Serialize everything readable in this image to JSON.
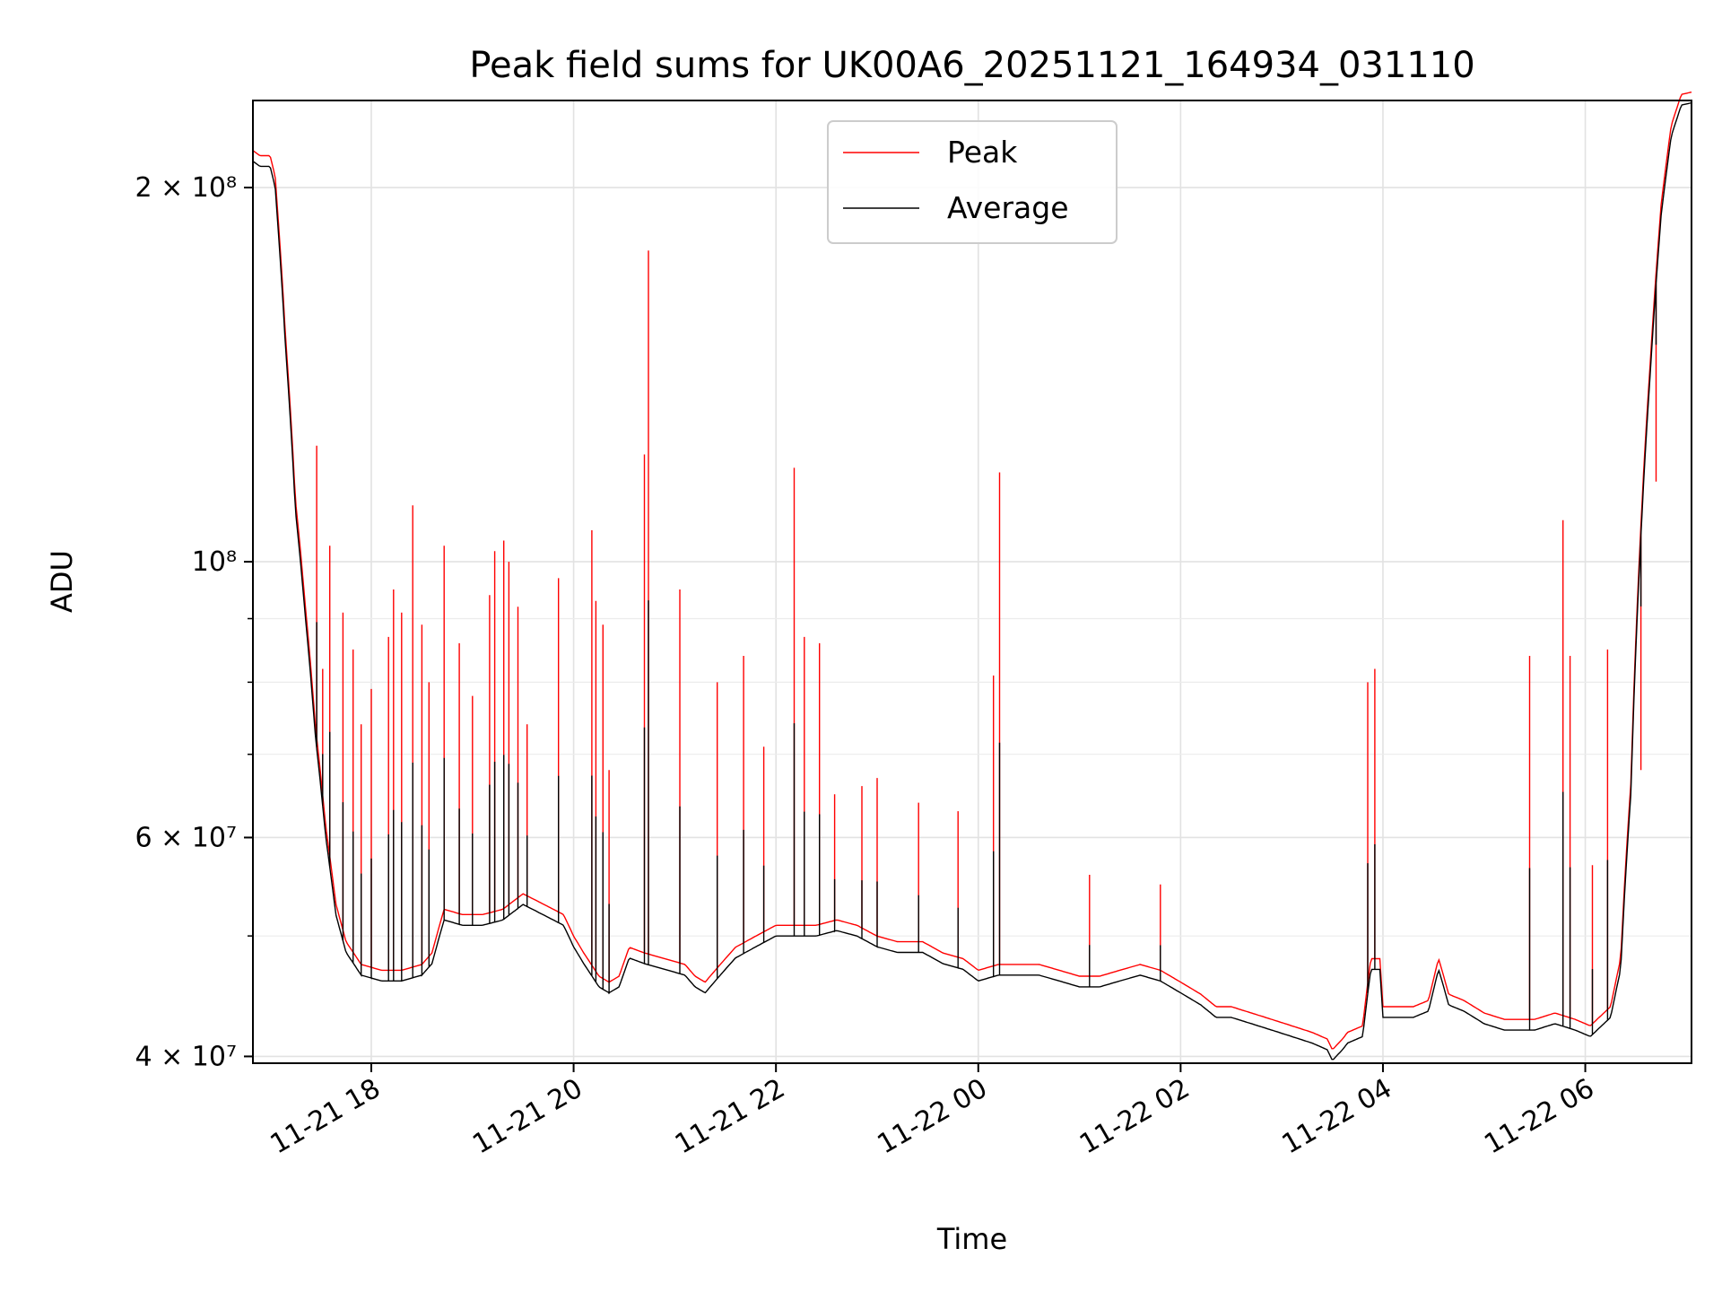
{
  "chart_data": {
    "type": "line",
    "title": "Peak field sums for UK00A6_20251121_164934_031110",
    "xlabel": "Time",
    "ylabel": "ADU",
    "yscale": "log",
    "grid": true,
    "legend_position": "top-center",
    "x_unit": "hours since 2025-11-21 00:00",
    "xlim": [
      16.83,
      31.05
    ],
    "ylim": [
      39500000,
      235000000
    ],
    "x_ticks": [
      {
        "value": 18,
        "label": "11-21 18"
      },
      {
        "value": 20,
        "label": "11-21 20"
      },
      {
        "value": 22,
        "label": "11-21 22"
      },
      {
        "value": 24,
        "label": "11-22 00"
      },
      {
        "value": 26,
        "label": "11-22 02"
      },
      {
        "value": 28,
        "label": "11-22 04"
      },
      {
        "value": 30,
        "label": "11-22 06"
      }
    ],
    "y_ticks": [
      {
        "value": 40000000,
        "label": "4 × 10⁷"
      },
      {
        "value": 60000000,
        "label": "6 × 10⁷"
      },
      {
        "value": 100000000,
        "label": "10⁸"
      },
      {
        "value": 200000000,
        "label": "2 × 10⁸"
      }
    ],
    "y_minor_ticks": [
      50000000,
      70000000,
      80000000,
      90000000
    ],
    "series": [
      {
        "name": "Average",
        "color": "#000000",
        "points": [
          [
            16.83,
            210000000
          ],
          [
            16.9,
            208000000
          ],
          [
            17.0,
            208000000
          ],
          [
            17.05,
            200000000
          ],
          [
            17.15,
            150000000
          ],
          [
            17.25,
            110000000
          ],
          [
            17.35,
            90000000
          ],
          [
            17.45,
            72000000
          ],
          [
            17.55,
            60000000
          ],
          [
            17.65,
            52000000
          ],
          [
            17.75,
            48500000
          ],
          [
            17.9,
            46500000
          ],
          [
            18.1,
            46000000
          ],
          [
            18.3,
            46000000
          ],
          [
            18.5,
            46500000
          ],
          [
            18.6,
            47500000
          ],
          [
            18.72,
            51500000
          ],
          [
            18.9,
            51000000
          ],
          [
            19.1,
            51000000
          ],
          [
            19.3,
            51500000
          ],
          [
            19.5,
            53000000
          ],
          [
            19.7,
            52000000
          ],
          [
            19.9,
            51000000
          ],
          [
            20.0,
            49000000
          ],
          [
            20.1,
            47500000
          ],
          [
            20.25,
            45500000
          ],
          [
            20.35,
            45000000
          ],
          [
            20.45,
            45500000
          ],
          [
            20.55,
            48000000
          ],
          [
            20.7,
            47500000
          ],
          [
            20.9,
            47000000
          ],
          [
            21.1,
            46500000
          ],
          [
            21.2,
            45500000
          ],
          [
            21.3,
            45000000
          ],
          [
            21.45,
            46500000
          ],
          [
            21.6,
            48000000
          ],
          [
            21.8,
            49000000
          ],
          [
            22.0,
            50000000
          ],
          [
            22.2,
            50000000
          ],
          [
            22.4,
            50000000
          ],
          [
            22.6,
            50500000
          ],
          [
            22.8,
            50000000
          ],
          [
            23.0,
            49000000
          ],
          [
            23.2,
            48500000
          ],
          [
            23.45,
            48500000
          ],
          [
            23.65,
            47500000
          ],
          [
            23.85,
            47000000
          ],
          [
            24.0,
            46000000
          ],
          [
            24.2,
            46500000
          ],
          [
            24.4,
            46500000
          ],
          [
            24.6,
            46500000
          ],
          [
            24.8,
            46000000
          ],
          [
            25.0,
            45500000
          ],
          [
            25.2,
            45500000
          ],
          [
            25.4,
            46000000
          ],
          [
            25.6,
            46500000
          ],
          [
            25.8,
            46000000
          ],
          [
            26.0,
            45000000
          ],
          [
            26.2,
            44000000
          ],
          [
            26.35,
            43000000
          ],
          [
            26.5,
            43000000
          ],
          [
            26.7,
            42500000
          ],
          [
            26.9,
            42000000
          ],
          [
            27.1,
            41500000
          ],
          [
            27.3,
            41000000
          ],
          [
            27.45,
            40500000
          ],
          [
            27.5,
            39700000
          ],
          [
            27.6,
            40500000
          ],
          [
            27.65,
            41000000
          ],
          [
            27.8,
            41500000
          ],
          [
            27.88,
            47000000
          ],
          [
            27.97,
            47000000
          ],
          [
            28.0,
            43000000
          ],
          [
            28.2,
            43000000
          ],
          [
            28.3,
            43000000
          ],
          [
            28.45,
            43500000
          ],
          [
            28.55,
            47000000
          ],
          [
            28.65,
            44000000
          ],
          [
            28.8,
            43500000
          ],
          [
            29.0,
            42500000
          ],
          [
            29.2,
            42000000
          ],
          [
            29.5,
            42000000
          ],
          [
            29.7,
            42500000
          ],
          [
            29.9,
            42000000
          ],
          [
            30.05,
            41500000
          ],
          [
            30.25,
            43000000
          ],
          [
            30.35,
            47000000
          ],
          [
            30.45,
            65000000
          ],
          [
            30.55,
            105000000
          ],
          [
            30.65,
            145000000
          ],
          [
            30.75,
            190000000
          ],
          [
            30.85,
            220000000
          ],
          [
            30.95,
            233000000
          ],
          [
            31.05,
            234000000
          ]
        ]
      },
      {
        "name": "Peak",
        "color": "#ff0000",
        "spikes": [
          [
            17.46,
            124000000
          ],
          [
            17.52,
            82000000
          ],
          [
            17.59,
            103000000
          ],
          [
            17.72,
            91000000
          ],
          [
            17.82,
            85000000
          ],
          [
            17.9,
            74000000
          ],
          [
            18.0,
            79000000
          ],
          [
            18.17,
            87000000
          ],
          [
            18.22,
            95000000
          ],
          [
            18.3,
            91000000
          ],
          [
            18.41,
            111000000
          ],
          [
            18.5,
            89000000
          ],
          [
            18.57,
            80000000
          ],
          [
            18.72,
            103000000
          ],
          [
            18.87,
            86000000
          ],
          [
            19.0,
            78000000
          ],
          [
            19.17,
            94000000
          ],
          [
            19.22,
            102000000
          ],
          [
            19.31,
            104000000
          ],
          [
            19.36,
            100000000
          ],
          [
            19.45,
            92000000
          ],
          [
            19.54,
            74000000
          ],
          [
            19.85,
            97000000
          ],
          [
            20.18,
            106000000
          ],
          [
            20.22,
            93000000
          ],
          [
            20.29,
            89000000
          ],
          [
            20.35,
            68000000
          ],
          [
            20.7,
            122000000
          ],
          [
            20.74,
            178000000
          ],
          [
            21.05,
            95000000
          ],
          [
            21.42,
            80000000
          ],
          [
            21.68,
            84000000
          ],
          [
            21.88,
            71000000
          ],
          [
            22.18,
            119000000
          ],
          [
            22.28,
            87000000
          ],
          [
            22.43,
            86000000
          ],
          [
            22.58,
            65000000
          ],
          [
            22.85,
            66000000
          ],
          [
            23.0,
            67000000
          ],
          [
            23.41,
            64000000
          ],
          [
            23.8,
            63000000
          ],
          [
            24.15,
            81000000
          ],
          [
            24.21,
            118000000
          ],
          [
            25.1,
            56000000
          ],
          [
            25.8,
            55000000
          ],
          [
            27.85,
            80000000
          ],
          [
            27.92,
            82000000
          ],
          [
            29.45,
            84000000
          ],
          [
            29.78,
            108000000
          ],
          [
            29.85,
            84000000
          ],
          [
            30.07,
            57000000
          ],
          [
            30.22,
            85000000
          ],
          [
            30.55,
            68000000
          ],
          [
            30.7,
            116000000
          ]
        ]
      }
    ]
  }
}
